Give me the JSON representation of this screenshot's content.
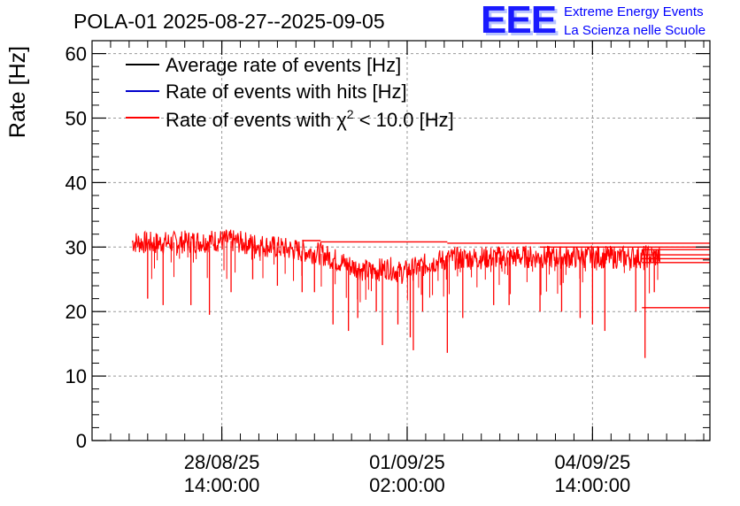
{
  "chart_data": {
    "type": "line",
    "title": "POLA-01 2025-08-27--2025-09-05",
    "xlabel": "",
    "ylabel": "Rate [Hz]",
    "ylim": [
      0,
      62
    ],
    "xlim_hours": [
      0,
      200
    ],
    "yticks": [
      0,
      10,
      20,
      30,
      40,
      50,
      60
    ],
    "grid": true,
    "legend_position": "top-left",
    "xticks": [
      {
        "hour": 42,
        "label_date": "28/08/25",
        "label_time": "14:00:00"
      },
      {
        "hour": 102,
        "label_date": "01/09/25",
        "label_time": "02:00:00"
      },
      {
        "hour": 162,
        "label_date": "04/09/25",
        "label_time": "14:00:00"
      }
    ],
    "series": [
      {
        "name": "Average rate of events [Hz]",
        "color": "#000000",
        "legend_text": "Average rate of events [Hz]"
      },
      {
        "name": "Rate of events with hits [Hz]",
        "color": "#0000cc",
        "legend_text": "Rate of events with hits [Hz]"
      },
      {
        "name": "Rate of events with chi2 < 10.0 [Hz]",
        "color": "#ff0000",
        "legend_prefix": "Rate of events with ",
        "legend_symbol": "χ",
        "legend_sup": "2",
        "legend_suffix": " < 10.0 [Hz]",
        "profile_x": [
          13,
          20,
          30,
          40,
          44,
          50,
          56,
          62,
          68,
          74,
          78,
          84,
          90,
          96,
          100,
          104,
          110,
          116,
          124,
          132,
          140,
          150,
          160,
          170,
          178,
          184
        ],
        "profile_y": [
          30.8,
          30.6,
          30.8,
          31.0,
          31.0,
          30.6,
          30.2,
          29.8,
          29.4,
          29.0,
          28.2,
          27.0,
          26.2,
          26.8,
          26.0,
          26.6,
          27.6,
          28.2,
          28.3,
          28.4,
          28.5,
          28.4,
          28.5,
          28.4,
          28.5,
          28.6
        ],
        "dips": [
          [
            18,
            22
          ],
          [
            23,
            21
          ],
          [
            32,
            21
          ],
          [
            38,
            19.5
          ],
          [
            45,
            23
          ],
          [
            52,
            25
          ],
          [
            60,
            24
          ],
          [
            68,
            23
          ],
          [
            72,
            23
          ],
          [
            78,
            18
          ],
          [
            83,
            17
          ],
          [
            86,
            19
          ],
          [
            92,
            20
          ],
          [
            94,
            14.8
          ],
          [
            99,
            18
          ],
          [
            103,
            16
          ],
          [
            104,
            14
          ],
          [
            107,
            20
          ],
          [
            115,
            13.6
          ],
          [
            120,
            19
          ],
          [
            130,
            21
          ],
          [
            135,
            21
          ],
          [
            145,
            20
          ],
          [
            152,
            20
          ],
          [
            158,
            19
          ],
          [
            162,
            18
          ],
          [
            166,
            17
          ],
          [
            176,
            20
          ],
          [
            179,
            12.8
          ],
          [
            182,
            23
          ]
        ],
        "flat_lines": [
          [
            68,
            74,
            31.0
          ],
          [
            74,
            115,
            30.8
          ],
          [
            115,
            200,
            30.6
          ],
          [
            145,
            200,
            30.0
          ],
          [
            178,
            200,
            29.6
          ],
          [
            178,
            200,
            28.8
          ],
          [
            178,
            200,
            28.2
          ],
          [
            178,
            200,
            27.6
          ],
          [
            178,
            200,
            20.6
          ]
        ]
      }
    ],
    "logo": {
      "text": "EEE",
      "line1": "Extreme Energy Events",
      "line2": "La Scienza nelle Scuole",
      "color": "#0000ff"
    }
  }
}
